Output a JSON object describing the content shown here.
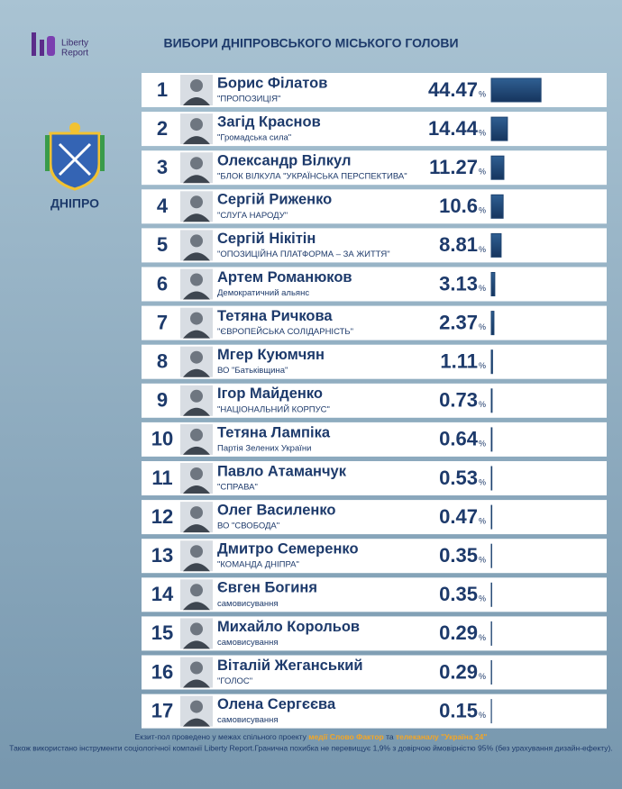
{
  "chart_data": {
    "type": "bar",
    "title": "ВИБОРИ ДНІПРОВСЬКОГО МІСЬКОГО ГОЛОВИ",
    "logo": [
      "Liberty",
      "Report"
    ],
    "city": "ДНІПРО",
    "ranks": [
      1,
      2,
      3,
      4,
      5,
      6,
      7,
      8,
      9,
      10,
      11,
      12,
      13,
      14,
      15,
      16,
      17
    ],
    "categories": [
      "Борис Філатов",
      "Загід Краснов",
      "Олександр Вілкул",
      "Сергій Риженко",
      "Сергій Нікітін",
      "Артем Романюков",
      "Тетяна Ричкова",
      "Мгер Куюмчян",
      "Ігор Майденко",
      "Тетяна Лампіка",
      "Павло Атаманчук",
      "Олег Василенко",
      "Дмитро Семеренко",
      "Євген Богиня",
      "Михайло Корольов",
      "Віталій Жеганський",
      "Олена Сергєєва"
    ],
    "parties": [
      "\"ПРОПОЗИЦІЯ\"",
      "\"Громадська сила\"",
      "\"БЛОК ВІЛКУЛА \"УКРАЇНСЬКА ПЕРСПЕКТИВА\"",
      "\"СЛУГА НАРОДУ\"",
      "\"ОПОЗИЦІЙНА ПЛАТФОРМА – ЗА ЖИТТЯ\"",
      "Демократичний альянс",
      "\"ЄВРОПЕЙСЬКА СОЛІДАРНІСТЬ\"",
      "ВО \"Батьківщина\"",
      "\"НАЦІОНАЛЬНИЙ КОРПУС\"",
      "Партія Зелених України",
      "\"СПРАВА\"",
      "ВО \"СВОБОДА\"",
      "\"КОМАНДА ДНІПРА\"",
      "самовисування",
      "самовисування",
      "\"ГОЛОС\"",
      "самовисування"
    ],
    "values": [
      44.47,
      14.44,
      11.27,
      10.6,
      8.81,
      3.13,
      2.37,
      1.11,
      0.73,
      0.64,
      0.53,
      0.47,
      0.35,
      0.35,
      0.29,
      0.29,
      0.15
    ],
    "unit": "%",
    "color": "#1e4370",
    "footer": [
      [
        "Екзит-пол проведено у межах спільного проекту ",
        "медії Слово Фактор",
        " та ",
        "телеканалу \"Україна 24\""
      ],
      "Також використано інструменти соціологічної компанії Liberty Report.Гранична похибка не перевищує 1,9% з довірчою ймовірністю 95% (без урахування дизайн-ефекту)."
    ]
  }
}
